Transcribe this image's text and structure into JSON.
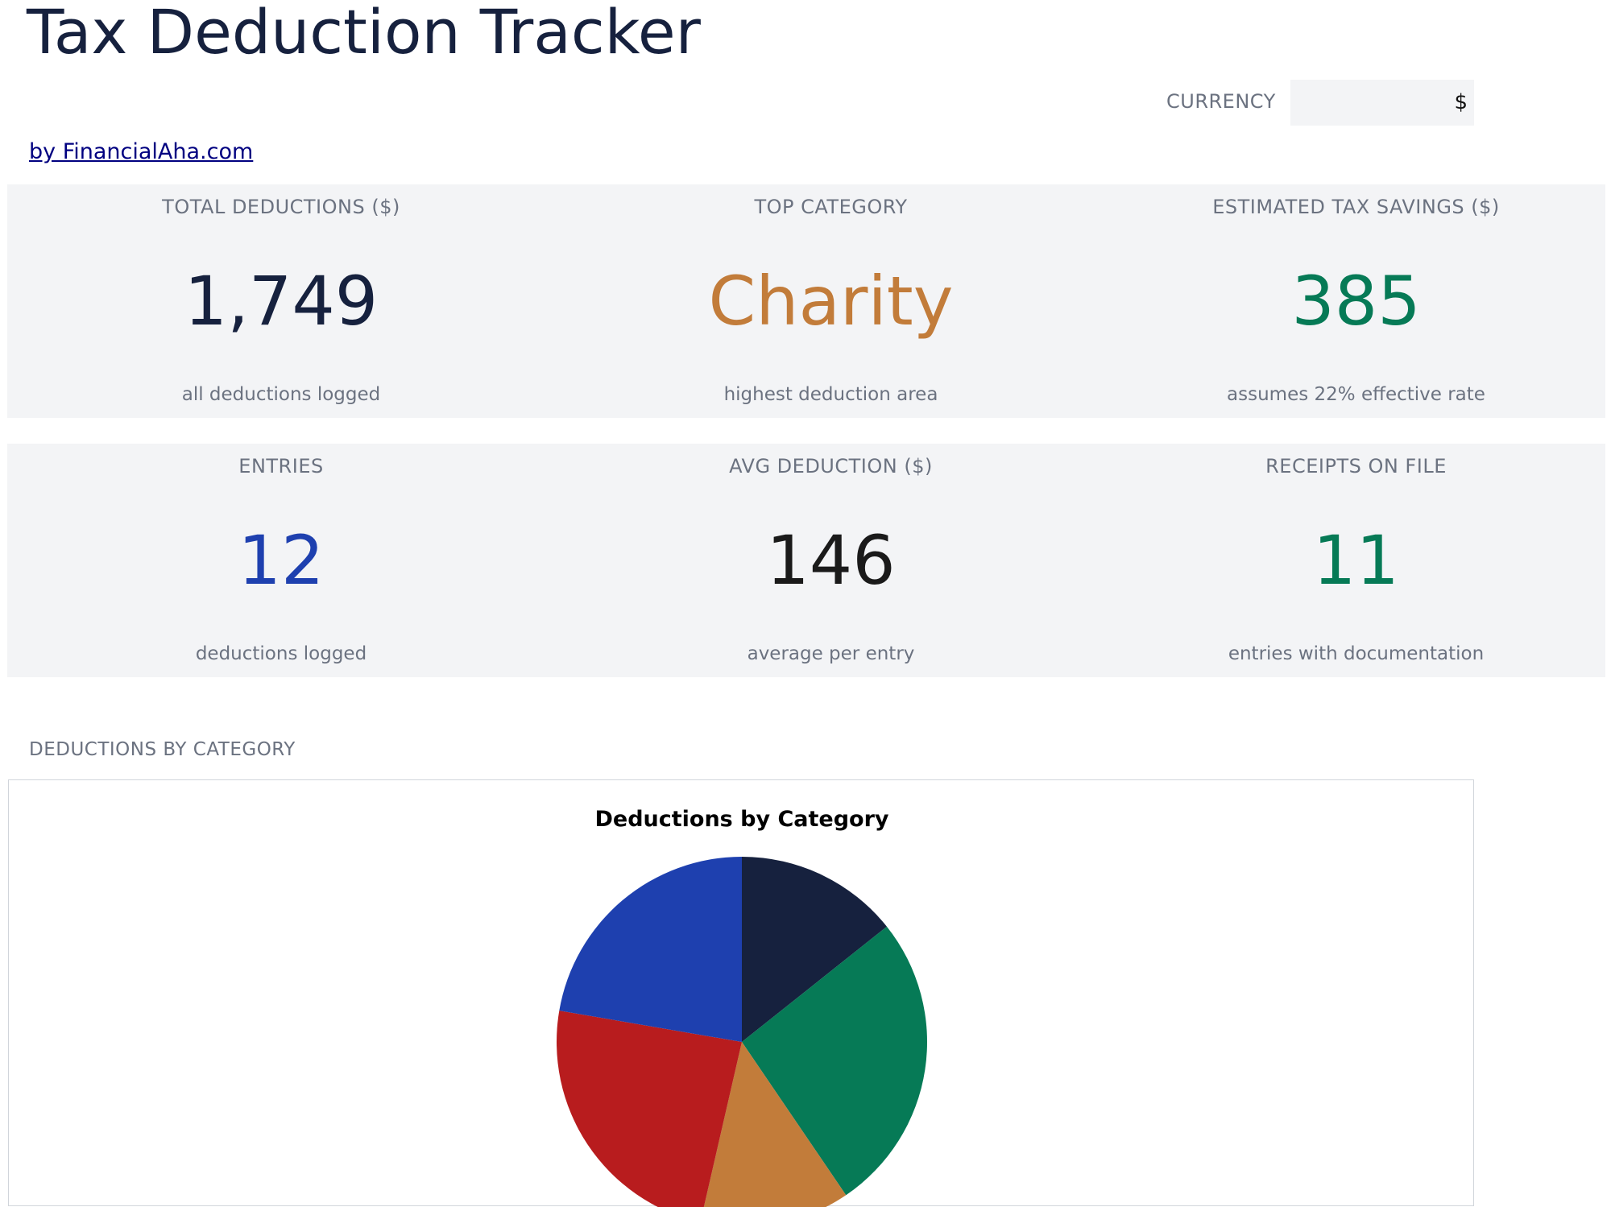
{
  "header": {
    "title": "Tax Deduction Tracker",
    "byline": "by FinancialAha.com"
  },
  "currency": {
    "label": "CURRENCY",
    "value": "$"
  },
  "kpis_row1": [
    {
      "label": "TOTAL DEDUCTIONS ($)",
      "value": "1,749",
      "sub": "all deductions logged",
      "color": "#16213e"
    },
    {
      "label": "TOP CATEGORY",
      "value": "Charity",
      "sub": "highest deduction area",
      "color": "#c27c3a"
    },
    {
      "label": "ESTIMATED TAX SAVINGS ($)",
      "value": "385",
      "sub": "assumes 22% effective rate",
      "color": "#067a56"
    }
  ],
  "kpis_row2": [
    {
      "label": "ENTRIES",
      "value": "12",
      "sub": "deductions logged",
      "color": "#1e40af"
    },
    {
      "label": "AVG DEDUCTION ($)",
      "value": "146",
      "sub": "average per entry",
      "color": "#1a1a1a"
    },
    {
      "label": "RECEIPTS ON FILE",
      "value": "11",
      "sub": "entries with documentation",
      "color": "#067a56"
    }
  ],
  "section": {
    "label": "DEDUCTIONS BY CATEGORY"
  },
  "chart_data": {
    "type": "pie",
    "title": "Deductions by Category",
    "slices": [
      {
        "share": 0.143,
        "color": "#16213e"
      },
      {
        "share": 0.262,
        "color": "#067a56"
      },
      {
        "share": 0.131,
        "color": "#c27c3a"
      },
      {
        "share": 0.241,
        "color": "#b81c1e"
      },
      {
        "share": 0.223,
        "color": "#1e40af"
      }
    ]
  }
}
